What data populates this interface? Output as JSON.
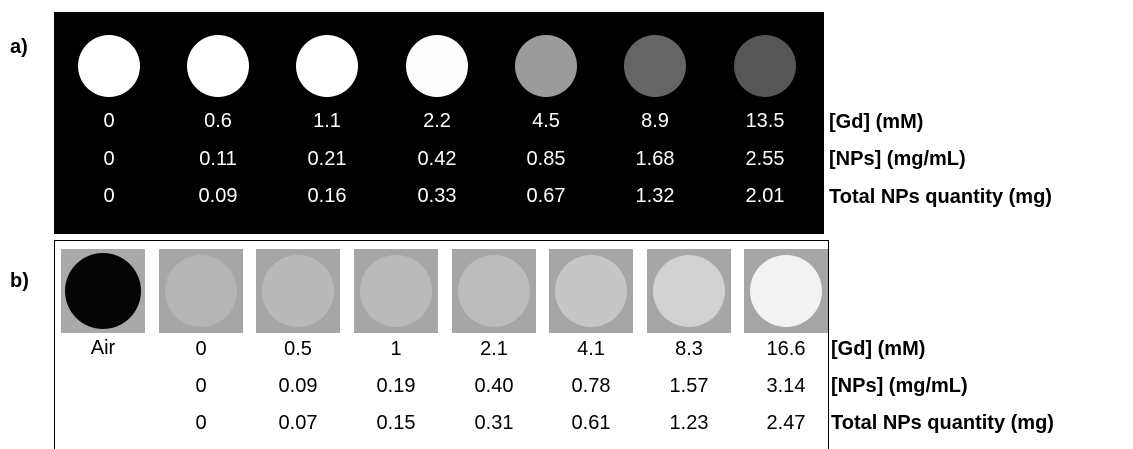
{
  "panel_a": {
    "label": "a)",
    "intensities": [
      "#ffffff",
      "#ffffff",
      "#ffffff",
      "#fdfdfd",
      "#9b9b9b",
      "#656565",
      "#565656"
    ],
    "rows": [
      {
        "label": "[Gd] (mM)",
        "values": [
          "0",
          "0.6",
          "1.1",
          "2.2",
          "4.5",
          "8.9",
          "13.5"
        ]
      },
      {
        "label": "[NPs] (mg/mL)",
        "values": [
          "0",
          "0.11",
          "0.21",
          "0.42",
          "0.85",
          "1.68",
          "2.55"
        ]
      },
      {
        "label": "Total NPs quantity (mg)",
        "values": [
          "0",
          "0.09",
          "0.16",
          "0.33",
          "0.67",
          "1.32",
          "2.01"
        ]
      }
    ]
  },
  "panel_b": {
    "label": "b)",
    "air_label": "Air",
    "spot_colors": [
      "#b5b5b5",
      "#b9b9b9",
      "#bababa",
      "#bcbcbc",
      "#c6c6c6",
      "#d2d2d2",
      "#f2f2f2"
    ],
    "rows": [
      {
        "label": "[Gd] (mM)",
        "values": [
          "0",
          "0.5",
          "1",
          "2.1",
          "4.1",
          "8.3",
          "16.6"
        ]
      },
      {
        "label": "[NPs] (mg/mL)",
        "values": [
          "0",
          "0.09",
          "0.19",
          "0.40",
          "0.78",
          "1.57",
          "3.14"
        ]
      },
      {
        "label": "Total NPs quantity (mg)",
        "values": [
          "0",
          "0.07",
          "0.15",
          "0.31",
          "0.61",
          "1.23",
          "2.47"
        ]
      }
    ]
  }
}
